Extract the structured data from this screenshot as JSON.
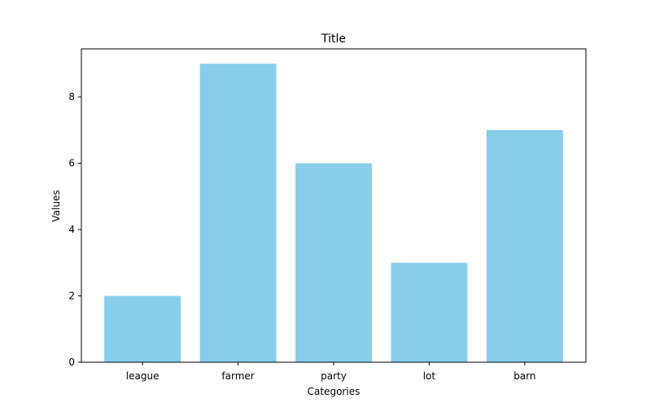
{
  "chart_data": {
    "type": "bar",
    "title": "Title",
    "xlabel": "Categories",
    "ylabel": "Values",
    "categories": [
      "league",
      "farmer",
      "party",
      "lot",
      "barn"
    ],
    "values": [
      2,
      9,
      6,
      3,
      7
    ],
    "ylim": [
      0,
      9.45
    ],
    "yticks": [
      0,
      2,
      4,
      6,
      8
    ],
    "bar_color": "#87ceeb",
    "grid": false,
    "legend": "none"
  }
}
